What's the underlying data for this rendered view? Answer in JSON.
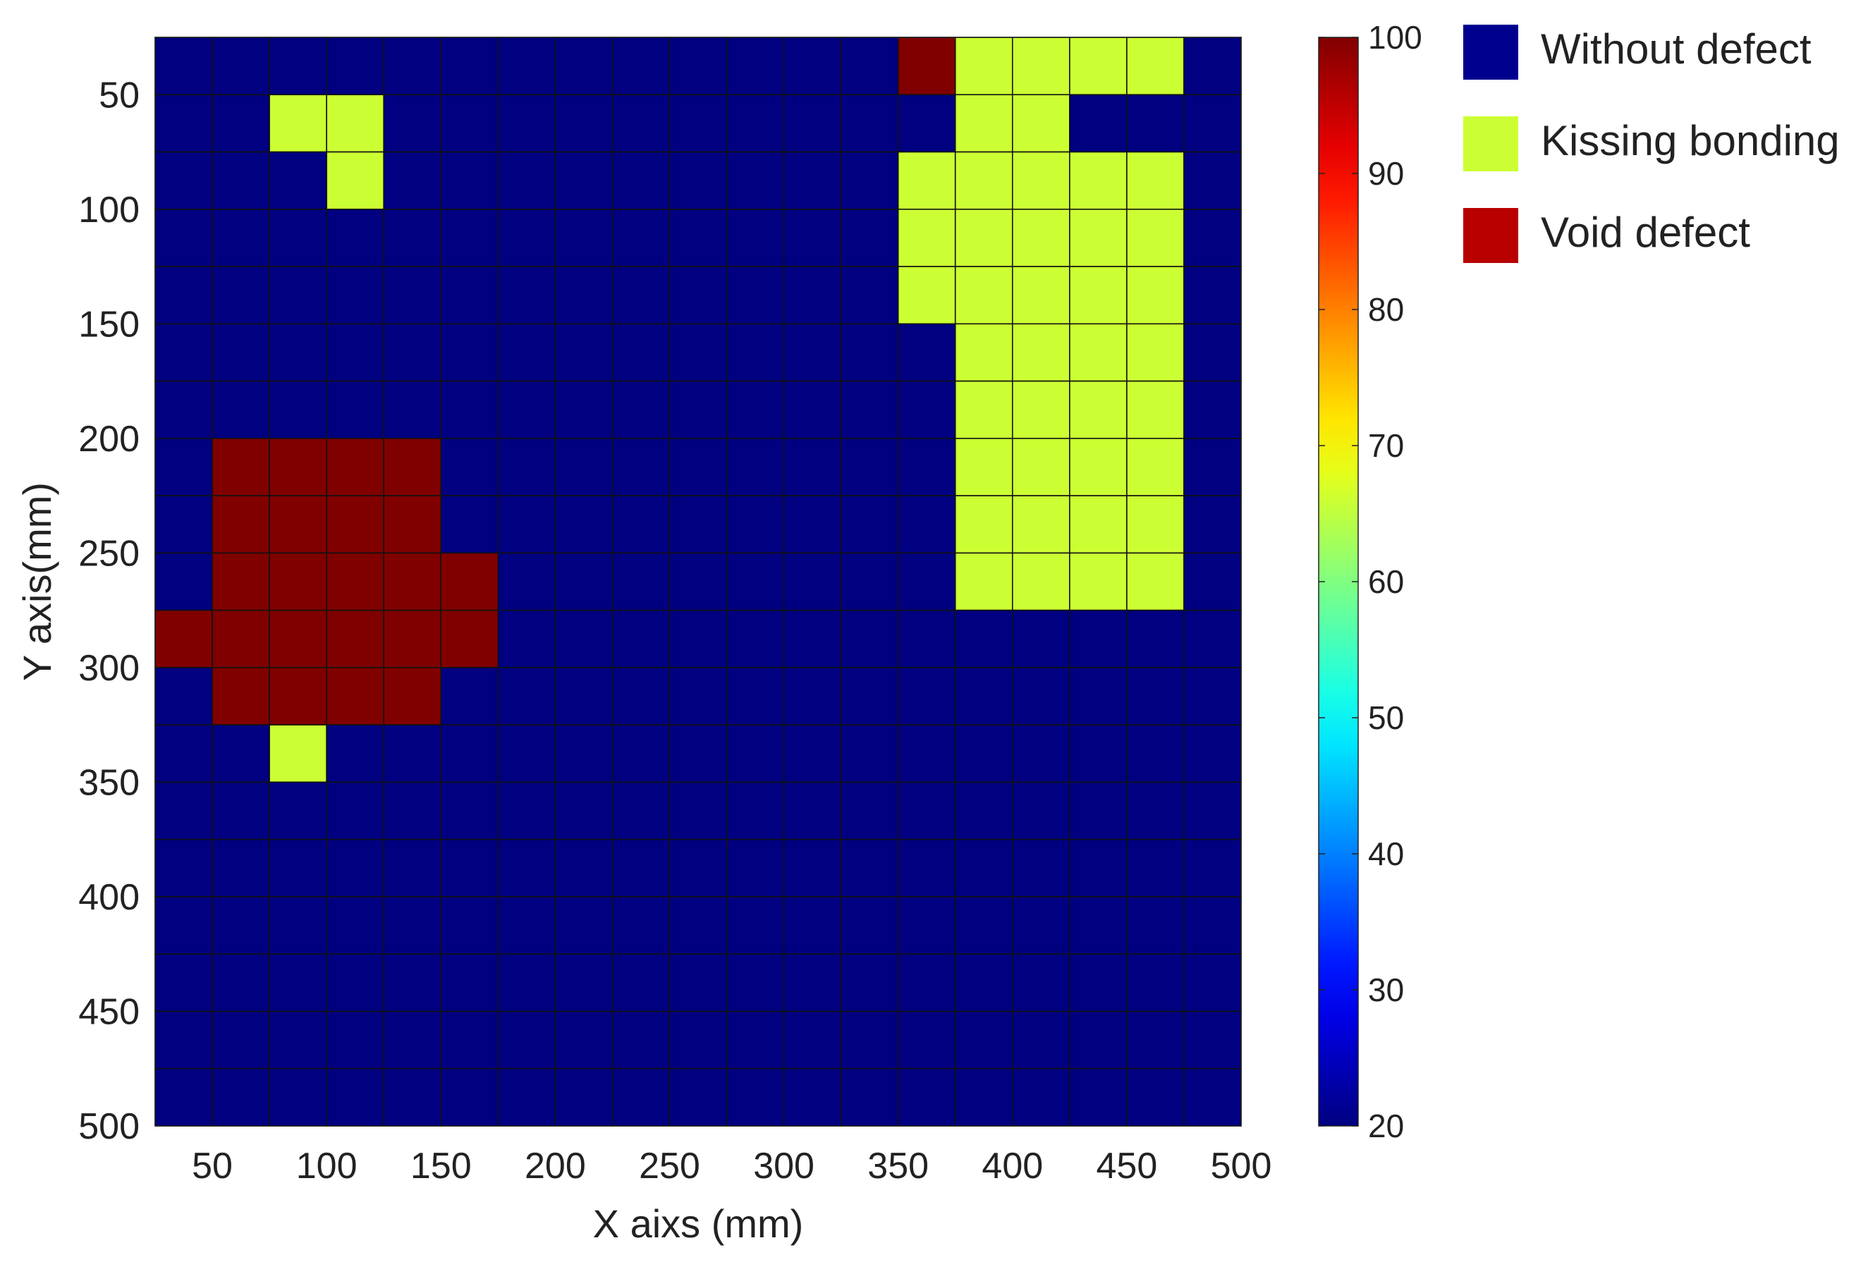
{
  "chart_data": {
    "type": "heatmap",
    "xlabel": "X aixs (mm)",
    "ylabel": "Y axis(mm)",
    "x_ticks": [
      50,
      100,
      150,
      200,
      250,
      300,
      350,
      400,
      450,
      500
    ],
    "y_ticks": [
      50,
      100,
      150,
      200,
      250,
      300,
      350,
      400,
      450,
      500
    ],
    "x_range": [
      25,
      500
    ],
    "y_range": [
      25,
      500
    ],
    "y_axis_direction": "reversed",
    "cell_size_mm": 25,
    "x_centers": [
      37.5,
      62.5,
      87.5,
      112.5,
      137.5,
      162.5,
      187.5,
      212.5,
      237.5,
      262.5,
      287.5,
      312.5,
      337.5,
      362.5,
      387.5,
      412.5,
      437.5,
      462.5,
      487.5
    ],
    "y_centers": [
      37.5,
      62.5,
      87.5,
      112.5,
      137.5,
      162.5,
      187.5,
      212.5,
      237.5,
      262.5,
      287.5,
      312.5,
      337.5,
      362.5,
      387.5,
      412.5,
      437.5,
      462.5,
      487.5
    ],
    "values": [
      [
        20,
        20,
        20,
        20,
        20,
        20,
        20,
        20,
        20,
        20,
        20,
        20,
        20,
        100,
        66,
        66,
        66,
        66,
        20
      ],
      [
        20,
        20,
        66,
        66,
        20,
        20,
        20,
        20,
        20,
        20,
        20,
        20,
        20,
        20,
        66,
        66,
        20,
        20,
        20
      ],
      [
        20,
        20,
        20,
        66,
        20,
        20,
        20,
        20,
        20,
        20,
        20,
        20,
        20,
        66,
        66,
        66,
        66,
        66,
        20
      ],
      [
        20,
        20,
        20,
        20,
        20,
        20,
        20,
        20,
        20,
        20,
        20,
        20,
        20,
        66,
        66,
        66,
        66,
        66,
        20
      ],
      [
        20,
        20,
        20,
        20,
        20,
        20,
        20,
        20,
        20,
        20,
        20,
        20,
        20,
        66,
        66,
        66,
        66,
        66,
        20
      ],
      [
        20,
        20,
        20,
        20,
        20,
        20,
        20,
        20,
        20,
        20,
        20,
        20,
        20,
        20,
        66,
        66,
        66,
        66,
        20
      ],
      [
        20,
        20,
        20,
        20,
        20,
        20,
        20,
        20,
        20,
        20,
        20,
        20,
        20,
        20,
        66,
        66,
        66,
        66,
        20
      ],
      [
        20,
        100,
        100,
        100,
        100,
        20,
        20,
        20,
        20,
        20,
        20,
        20,
        20,
        20,
        66,
        66,
        66,
        66,
        20
      ],
      [
        20,
        100,
        100,
        100,
        100,
        20,
        20,
        20,
        20,
        20,
        20,
        20,
        20,
        20,
        66,
        66,
        66,
        66,
        20
      ],
      [
        20,
        100,
        100,
        100,
        100,
        100,
        20,
        20,
        20,
        20,
        20,
        20,
        20,
        20,
        66,
        66,
        66,
        66,
        20
      ],
      [
        100,
        100,
        100,
        100,
        100,
        100,
        20,
        20,
        20,
        20,
        20,
        20,
        20,
        20,
        20,
        20,
        20,
        20,
        20
      ],
      [
        20,
        100,
        100,
        100,
        100,
        20,
        20,
        20,
        20,
        20,
        20,
        20,
        20,
        20,
        20,
        20,
        20,
        20,
        20
      ],
      [
        20,
        20,
        66,
        20,
        20,
        20,
        20,
        20,
        20,
        20,
        20,
        20,
        20,
        20,
        20,
        20,
        20,
        20,
        20
      ],
      [
        20,
        20,
        20,
        20,
        20,
        20,
        20,
        20,
        20,
        20,
        20,
        20,
        20,
        20,
        20,
        20,
        20,
        20,
        20
      ],
      [
        20,
        20,
        20,
        20,
        20,
        20,
        20,
        20,
        20,
        20,
        20,
        20,
        20,
        20,
        20,
        20,
        20,
        20,
        20
      ],
      [
        20,
        20,
        20,
        20,
        20,
        20,
        20,
        20,
        20,
        20,
        20,
        20,
        20,
        20,
        20,
        20,
        20,
        20,
        20
      ],
      [
        20,
        20,
        20,
        20,
        20,
        20,
        20,
        20,
        20,
        20,
        20,
        20,
        20,
        20,
        20,
        20,
        20,
        20,
        20
      ],
      [
        20,
        20,
        20,
        20,
        20,
        20,
        20,
        20,
        20,
        20,
        20,
        20,
        20,
        20,
        20,
        20,
        20,
        20,
        20
      ],
      [
        20,
        20,
        20,
        20,
        20,
        20,
        20,
        20,
        20,
        20,
        20,
        20,
        20,
        20,
        20,
        20,
        20,
        20,
        20
      ]
    ],
    "colorbar": {
      "min": 20,
      "max": 100,
      "ticks": [
        20,
        30,
        40,
        50,
        60,
        70,
        80,
        90,
        100
      ],
      "colormap": "jet"
    },
    "legend": {
      "placement": "right",
      "entries": [
        {
          "label": "Without defect",
          "color": "#00008f"
        },
        {
          "label": "Kissing bonding",
          "color": "#ccff33"
        },
        {
          "label": "Void defect",
          "color": "#b80000"
        }
      ]
    },
    "grid": true
  }
}
